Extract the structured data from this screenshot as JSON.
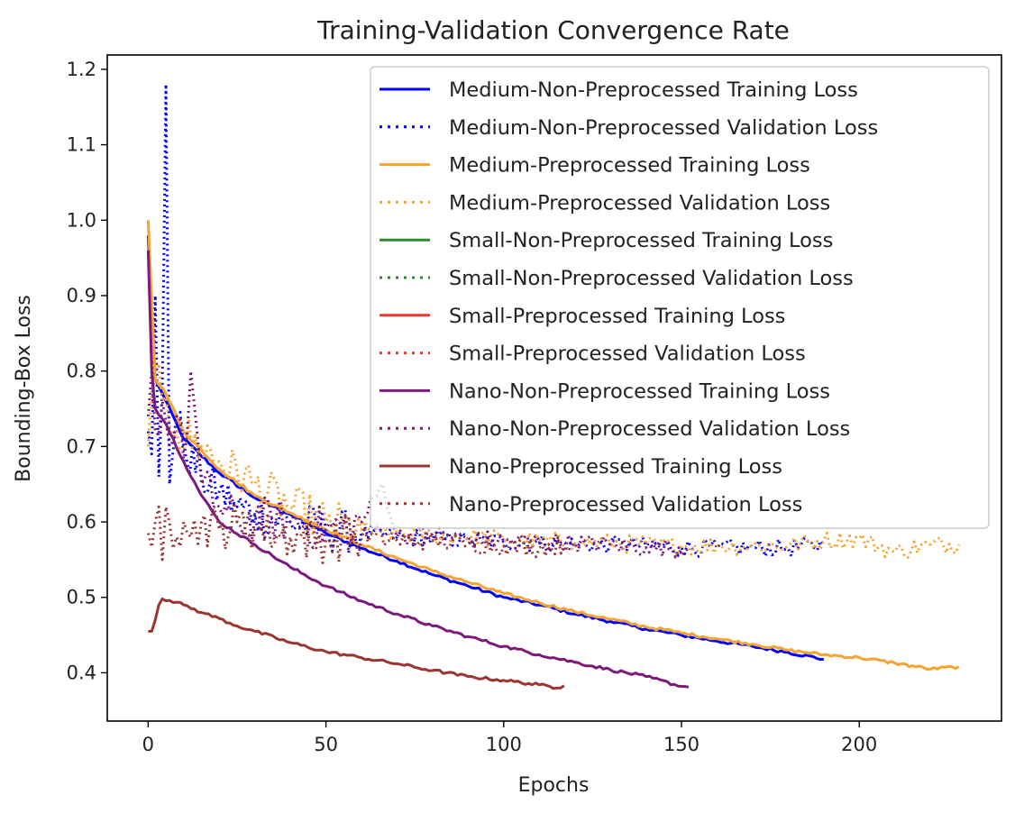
{
  "chart_data": {
    "type": "line",
    "title": "Training-Validation Convergence Rate",
    "xlabel": "Epochs",
    "ylabel": "Bounding-Box Loss",
    "xlim": [
      -11.5,
      240
    ],
    "ylim": [
      0.336,
      1.219
    ],
    "xticks": [
      0,
      50,
      100,
      150,
      200
    ],
    "yticks": [
      0.4,
      0.5,
      0.6,
      0.7,
      0.8,
      0.9,
      1.0,
      1.1,
      1.2
    ],
    "ytick_labels": [
      "0.4",
      "0.5",
      "0.6",
      "0.7",
      "0.8",
      "0.9",
      "1.0",
      "1.1",
      "1.2"
    ],
    "legend_position": "upper right",
    "series": [
      {
        "name": "Medium-Non-Preprocessed Training Loss",
        "color": "#0000ff",
        "style": "solid",
        "points": [
          [
            0,
            0.98
          ],
          [
            2,
            0.79
          ],
          [
            5,
            0.76
          ],
          [
            10,
            0.71
          ],
          [
            20,
            0.665
          ],
          [
            30,
            0.632
          ],
          [
            40,
            0.61
          ],
          [
            50,
            0.585
          ],
          [
            60,
            0.565
          ],
          [
            70,
            0.548
          ],
          [
            80,
            0.53
          ],
          [
            90,
            0.515
          ],
          [
            100,
            0.5
          ],
          [
            110,
            0.49
          ],
          [
            120,
            0.478
          ],
          [
            130,
            0.468
          ],
          [
            140,
            0.458
          ],
          [
            150,
            0.45
          ],
          [
            160,
            0.442
          ],
          [
            170,
            0.435
          ],
          [
            180,
            0.427
          ],
          [
            190,
            0.418
          ]
        ]
      },
      {
        "name": "Medium-Non-Preprocessed Validation Loss",
        "color": "#0000ff",
        "style": "dotted",
        "points": [
          [
            0,
            0.72
          ],
          [
            1,
            0.69
          ],
          [
            2,
            0.9
          ],
          [
            3,
            0.66
          ],
          [
            4,
            0.78
          ],
          [
            5,
            1.18
          ],
          [
            6,
            0.65
          ],
          [
            8,
            0.74
          ],
          [
            10,
            0.7
          ],
          [
            15,
            0.66
          ],
          [
            20,
            0.64
          ],
          [
            25,
            0.62
          ],
          [
            30,
            0.61
          ],
          [
            40,
            0.6
          ],
          [
            50,
            0.59
          ],
          [
            60,
            0.585
          ],
          [
            70,
            0.58
          ],
          [
            80,
            0.578
          ],
          [
            90,
            0.575
          ],
          [
            100,
            0.573
          ],
          [
            110,
            0.572
          ],
          [
            120,
            0.57
          ],
          [
            130,
            0.57
          ],
          [
            140,
            0.568
          ],
          [
            150,
            0.566
          ],
          [
            160,
            0.565
          ],
          [
            170,
            0.566
          ],
          [
            180,
            0.565
          ],
          [
            190,
            0.57
          ]
        ]
      },
      {
        "name": "Medium-Preprocessed Training Loss",
        "color": "#f5a331",
        "style": "solid",
        "points": [
          [
            0,
            1.0
          ],
          [
            2,
            0.79
          ],
          [
            5,
            0.77
          ],
          [
            10,
            0.72
          ],
          [
            20,
            0.67
          ],
          [
            30,
            0.635
          ],
          [
            40,
            0.612
          ],
          [
            50,
            0.59
          ],
          [
            60,
            0.57
          ],
          [
            70,
            0.552
          ],
          [
            80,
            0.535
          ],
          [
            90,
            0.52
          ],
          [
            100,
            0.505
          ],
          [
            110,
            0.493
          ],
          [
            120,
            0.481
          ],
          [
            130,
            0.471
          ],
          [
            140,
            0.461
          ],
          [
            150,
            0.453
          ],
          [
            160,
            0.445
          ],
          [
            170,
            0.438
          ],
          [
            180,
            0.43
          ],
          [
            190,
            0.424
          ],
          [
            200,
            0.42
          ],
          [
            210,
            0.413
          ],
          [
            220,
            0.405
          ],
          [
            228,
            0.408
          ]
        ]
      },
      {
        "name": "Medium-Preprocessed Validation Loss",
        "color": "#f5a331",
        "style": "dotted",
        "points": [
          [
            0,
            0.7
          ],
          [
            2,
            0.8
          ],
          [
            4,
            0.76
          ],
          [
            8,
            0.72
          ],
          [
            15,
            0.7
          ],
          [
            20,
            0.68
          ],
          [
            30,
            0.65
          ],
          [
            40,
            0.62
          ],
          [
            50,
            0.6
          ],
          [
            60,
            0.59
          ],
          [
            70,
            0.585
          ],
          [
            80,
            0.582
          ],
          [
            90,
            0.58
          ],
          [
            100,
            0.577
          ],
          [
            110,
            0.575
          ],
          [
            120,
            0.573
          ],
          [
            130,
            0.572
          ],
          [
            140,
            0.57
          ],
          [
            150,
            0.568
          ],
          [
            160,
            0.568
          ],
          [
            170,
            0.568
          ],
          [
            180,
            0.569
          ],
          [
            190,
            0.575
          ],
          [
            200,
            0.578
          ],
          [
            210,
            0.56
          ],
          [
            220,
            0.57
          ],
          [
            228,
            0.57
          ]
        ]
      },
      {
        "name": "Small-Non-Preprocessed Training Loss",
        "color": "#2e8b2e",
        "style": "solid",
        "points": []
      },
      {
        "name": "Small-Non-Preprocessed Validation Loss",
        "color": "#2e8b2e",
        "style": "dotted",
        "points": []
      },
      {
        "name": "Small-Preprocessed Training Loss",
        "color": "#e8392e",
        "style": "solid",
        "points": []
      },
      {
        "name": "Small-Preprocessed Validation Loss",
        "color": "#e8392e",
        "style": "dotted",
        "points": []
      },
      {
        "name": "Nano-Non-Preprocessed Training Loss",
        "color": "#7c1a7c",
        "style": "solid",
        "points": [
          [
            0,
            0.96
          ],
          [
            1,
            0.8
          ],
          [
            2,
            0.75
          ],
          [
            5,
            0.73
          ],
          [
            10,
            0.68
          ],
          [
            15,
            0.635
          ],
          [
            20,
            0.6
          ],
          [
            30,
            0.57
          ],
          [
            40,
            0.54
          ],
          [
            50,
            0.515
          ],
          [
            60,
            0.495
          ],
          [
            70,
            0.478
          ],
          [
            80,
            0.462
          ],
          [
            90,
            0.448
          ],
          [
            100,
            0.435
          ],
          [
            110,
            0.424
          ],
          [
            120,
            0.414
          ],
          [
            130,
            0.404
          ],
          [
            140,
            0.395
          ],
          [
            150,
            0.382
          ],
          [
            152,
            0.381
          ]
        ]
      },
      {
        "name": "Nano-Non-Preprocessed Validation Loss",
        "color": "#7c1a7c",
        "style": "dotted",
        "points": [
          [
            0,
            0.74
          ],
          [
            1,
            0.8
          ],
          [
            2,
            0.72
          ],
          [
            4,
            0.76
          ],
          [
            6,
            0.7
          ],
          [
            8,
            0.74
          ],
          [
            10,
            0.68
          ],
          [
            12,
            0.8
          ],
          [
            15,
            0.65
          ],
          [
            20,
            0.62
          ],
          [
            25,
            0.6
          ],
          [
            30,
            0.605
          ],
          [
            40,
            0.6
          ],
          [
            50,
            0.59
          ],
          [
            60,
            0.6
          ],
          [
            66,
            0.65
          ],
          [
            70,
            0.58
          ],
          [
            80,
            0.585
          ],
          [
            90,
            0.578
          ],
          [
            100,
            0.575
          ],
          [
            110,
            0.575
          ],
          [
            120,
            0.572
          ],
          [
            130,
            0.57
          ],
          [
            140,
            0.566
          ],
          [
            152,
            0.565
          ]
        ]
      },
      {
        "name": "Nano-Preprocessed Training Loss",
        "color": "#9b3530",
        "style": "solid",
        "points": [
          [
            0,
            0.455
          ],
          [
            1,
            0.455
          ],
          [
            2,
            0.47
          ],
          [
            3,
            0.49
          ],
          [
            4,
            0.498
          ],
          [
            6,
            0.496
          ],
          [
            10,
            0.49
          ],
          [
            15,
            0.48
          ],
          [
            20,
            0.472
          ],
          [
            25,
            0.462
          ],
          [
            30,
            0.455
          ],
          [
            40,
            0.44
          ],
          [
            50,
            0.428
          ],
          [
            60,
            0.42
          ],
          [
            70,
            0.412
          ],
          [
            80,
            0.403
          ],
          [
            90,
            0.395
          ],
          [
            100,
            0.39
          ],
          [
            110,
            0.384
          ],
          [
            115,
            0.38
          ],
          [
            117,
            0.383
          ]
        ]
      },
      {
        "name": "Nano-Preprocessed Validation Loss",
        "color": "#9b3530",
        "style": "dotted",
        "points": [
          [
            0,
            0.585
          ],
          [
            2,
            0.6
          ],
          [
            3,
            0.62
          ],
          [
            4,
            0.55
          ],
          [
            5,
            0.62
          ],
          [
            6,
            0.6
          ],
          [
            8,
            0.58
          ],
          [
            10,
            0.6
          ],
          [
            12,
            0.58
          ],
          [
            15,
            0.6
          ],
          [
            20,
            0.59
          ],
          [
            25,
            0.6
          ],
          [
            30,
            0.59
          ],
          [
            40,
            0.58
          ],
          [
            50,
            0.575
          ],
          [
            60,
            0.58
          ],
          [
            70,
            0.575
          ],
          [
            80,
            0.575
          ],
          [
            90,
            0.57
          ],
          [
            100,
            0.568
          ],
          [
            110,
            0.565
          ],
          [
            117,
            0.57
          ]
        ]
      }
    ]
  }
}
